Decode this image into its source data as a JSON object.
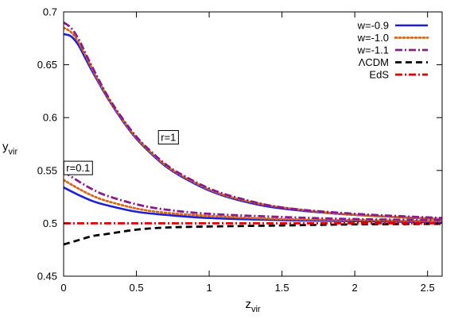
{
  "chart_data": {
    "type": "line",
    "xlabel": "z",
    "xlabel_sub": "vir",
    "ylabel": "y",
    "ylabel_sub": "vir",
    "xlim": [
      0,
      2.6
    ],
    "ylim": [
      0.45,
      0.7
    ],
    "xticks": [
      0,
      0.5,
      1,
      1.5,
      2,
      2.5
    ],
    "xtick_labels": [
      "0",
      "0.5",
      "1",
      "1.5",
      "2",
      "2.5"
    ],
    "yticks": [
      0.45,
      0.5,
      0.55,
      0.6,
      0.65,
      0.7
    ],
    "ytick_labels": [
      "0.45",
      "0.5",
      "0.55",
      "0.6",
      "0.65",
      "0.7"
    ],
    "grid": false,
    "legend_position": "top-right",
    "annotations": [
      {
        "text": "r=1",
        "x": 0.72,
        "y": 0.578
      },
      {
        "text": "r=0.1",
        "x": 0.1,
        "y": 0.549
      }
    ],
    "series": [
      {
        "name": "w=-0.9",
        "color": "#1f1fd6",
        "dash": "solid",
        "group": "r=1",
        "x": [
          0,
          0.05,
          0.1,
          0.15,
          0.2,
          0.3,
          0.4,
          0.5,
          0.6,
          0.7,
          0.8,
          1.0,
          1.2,
          1.5,
          2.0,
          2.6
        ],
        "y": [
          0.679,
          0.677,
          0.669,
          0.656,
          0.643,
          0.619,
          0.598,
          0.58,
          0.566,
          0.554,
          0.545,
          0.531,
          0.522,
          0.514,
          0.508,
          0.504
        ]
      },
      {
        "name": "w=-1.0",
        "color": "#d2691e",
        "dash": "dotted",
        "group": "r=1",
        "x": [
          0,
          0.05,
          0.1,
          0.15,
          0.2,
          0.3,
          0.4,
          0.5,
          0.6,
          0.7,
          0.8,
          1.0,
          1.2,
          1.5,
          2.0,
          2.6
        ],
        "y": [
          0.685,
          0.681,
          0.672,
          0.659,
          0.645,
          0.62,
          0.599,
          0.581,
          0.567,
          0.555,
          0.546,
          0.532,
          0.523,
          0.515,
          0.508,
          0.504
        ]
      },
      {
        "name": "w=-1.1",
        "color": "#8b1a8b",
        "dash": "dashdot",
        "group": "r=1",
        "x": [
          0,
          0.05,
          0.1,
          0.15,
          0.2,
          0.3,
          0.4,
          0.5,
          0.6,
          0.7,
          0.8,
          1.0,
          1.2,
          1.5,
          2.0,
          2.6
        ],
        "y": [
          0.69,
          0.685,
          0.675,
          0.661,
          0.647,
          0.621,
          0.6,
          0.582,
          0.568,
          0.556,
          0.547,
          0.533,
          0.524,
          0.515,
          0.509,
          0.505
        ]
      },
      {
        "name": "",
        "color": "#1f1fd6",
        "dash": "solid",
        "group": "r=0.1",
        "x": [
          0,
          0.1,
          0.2,
          0.3,
          0.5,
          0.7,
          1.0,
          1.5,
          2.0,
          2.6
        ],
        "y": [
          0.534,
          0.527,
          0.521,
          0.517,
          0.511,
          0.508,
          0.505,
          0.503,
          0.502,
          0.501
        ]
      },
      {
        "name": "",
        "color": "#d2691e",
        "dash": "dotted",
        "group": "r=0.1",
        "x": [
          0,
          0.1,
          0.2,
          0.3,
          0.5,
          0.7,
          1.0,
          1.5,
          2.0,
          2.6
        ],
        "y": [
          0.541,
          0.533,
          0.526,
          0.521,
          0.514,
          0.51,
          0.507,
          0.504,
          0.503,
          0.502
        ]
      },
      {
        "name": "",
        "color": "#8b1a8b",
        "dash": "dashdot",
        "group": "r=0.1",
        "x": [
          0,
          0.1,
          0.2,
          0.3,
          0.5,
          0.7,
          1.0,
          1.5,
          2.0,
          2.6
        ],
        "y": [
          0.549,
          0.54,
          0.532,
          0.526,
          0.518,
          0.513,
          0.509,
          0.506,
          0.504,
          0.503
        ]
      },
      {
        "name": "ΛCDM",
        "color": "#000000",
        "dash": "dashed",
        "group": "LCDM",
        "x": [
          0,
          0.1,
          0.2,
          0.3,
          0.5,
          0.7,
          1.0,
          1.5,
          2.0,
          2.6
        ],
        "y": [
          0.48,
          0.484,
          0.488,
          0.49,
          0.494,
          0.496,
          0.497,
          0.498,
          0.499,
          0.4995
        ]
      },
      {
        "name": "EdS",
        "color": "#e00000",
        "dash": "dashdot",
        "group": "EdS",
        "x": [
          0,
          2.6
        ],
        "y": [
          0.5,
          0.5
        ]
      }
    ]
  }
}
